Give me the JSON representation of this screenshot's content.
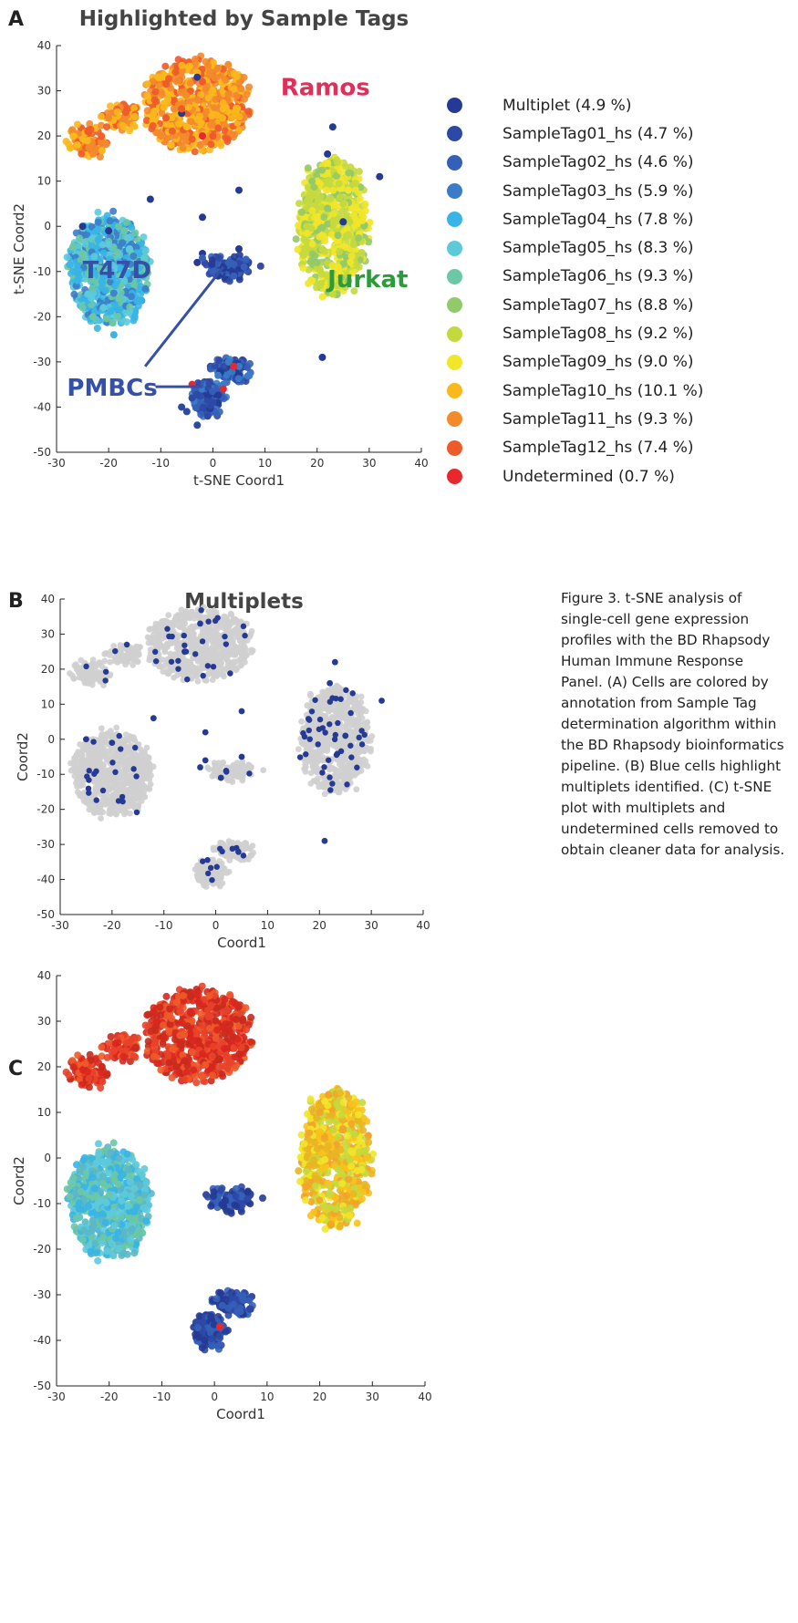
{
  "panels": {
    "a": {
      "letter": "A",
      "title": "Highlighted by Sample Tags",
      "xlabel": "t-SNE Coord1",
      "ylabel": "t-SNE Coord2"
    },
    "b": {
      "letter": "B",
      "title": "Multiplets",
      "xlabel": "Coord1",
      "ylabel": "Coord2"
    },
    "c": {
      "letter": "C",
      "title": "",
      "xlabel": "Coord1",
      "ylabel": "Coord2"
    }
  },
  "cluster_labels": [
    {
      "text": "Ramos",
      "x": 13,
      "y": 29,
      "color": "#e0305a"
    },
    {
      "text": "T47D",
      "x": -25,
      "y": -11.5,
      "color": "#3450a8"
    },
    {
      "text": "Jurkat",
      "x": 22,
      "y": -13.5,
      "color": "#2d9a3c"
    },
    {
      "text": "PMBCs",
      "x": -28,
      "y": -37.5,
      "color": "#3450a8"
    }
  ],
  "legend": [
    {
      "label": "Multiplet (4.9 %)",
      "color": "#253a94"
    },
    {
      "label": "SampleTag01_hs (4.7 %)",
      "color": "#2d49a6"
    },
    {
      "label": "SampleTag02_hs (4.6 %)",
      "color": "#3560b8"
    },
    {
      "label": "SampleTag03_hs (5.9 %)",
      "color": "#3b7cc8"
    },
    {
      "label": "SampleTag04_hs (7.8 %)",
      "color": "#38b4e6"
    },
    {
      "label": "SampleTag05_hs (8.3 %)",
      "color": "#5dcadc"
    },
    {
      "label": "SampleTag06_hs (9.3 %)",
      "color": "#6cc8a4"
    },
    {
      "label": "SampleTag07_hs (8.8 %)",
      "color": "#92c96a"
    },
    {
      "label": "SampleTag08_hs (9.2 %)",
      "color": "#c4d93e"
    },
    {
      "label": "SampleTag09_hs (9.0 %)",
      "color": "#f1e629"
    },
    {
      "label": "SampleTag10_hs (10.1 %)",
      "color": "#f9b81c"
    },
    {
      "label": "SampleTag11_hs (9.3 %)",
      "color": "#f38a2c"
    },
    {
      "label": "SampleTag12_hs (7.4 %)",
      "color": "#ee5a2a"
    },
    {
      "label": "Undetermined (0.7 %)",
      "color": "#e8282d"
    }
  ],
  "caption": "Figure 3. t-SNE analysis of single-cell gene expression profiles with the BD Rhapsody Human Immune Response Panel. (A) Cells are colored by annotation from Sample Tag determination algorithm within the BD Rhapsody bioinformatics pipeline. (B) Blue cells highlight multiplets identified. (C) t-SNE plot with multiplets and undetermined cells removed to obtain cleaner data for analysis.",
  "chart_data": [
    {
      "type": "scatter",
      "title": "Highlighted by Sample Tags",
      "xlabel": "t-SNE Coord1",
      "ylabel": "t-SNE Coord2",
      "xlim": [
        -30,
        40
      ],
      "ylim": [
        -50,
        40
      ],
      "xticks": [
        -30,
        -20,
        -10,
        0,
        10,
        20,
        30,
        40
      ],
      "yticks": [
        -50,
        -40,
        -30,
        -20,
        -10,
        0,
        10,
        20,
        30,
        40
      ],
      "series": [
        {
          "name": "Multiplet (4.9 %)",
          "points": [
            [
              -3,
              -8
            ],
            [
              -2,
              -6
            ],
            [
              2,
              -9
            ],
            [
              5,
              -5
            ],
            [
              1,
              -11
            ],
            [
              -12,
              6
            ],
            [
              5,
              8
            ],
            [
              23,
              22
            ],
            [
              21,
              -29
            ],
            [
              32,
              11
            ],
            [
              -3,
              33
            ],
            [
              -6,
              25
            ],
            [
              -2,
              2
            ],
            [
              -20,
              -1
            ],
            [
              -25,
              0
            ],
            [
              22,
              16
            ],
            [
              25,
              1
            ]
          ]
        },
        {
          "name": "SampleTag01_hs (4.7 %)",
          "points": [
            [
              -5,
              -41
            ],
            [
              -3,
              -44
            ],
            [
              0,
              -39
            ],
            [
              -4,
              -38
            ],
            [
              -1,
              -42
            ],
            [
              -6,
              -40
            ]
          ]
        },
        {
          "name": "SampleTag02_hs (4.6 %)",
          "points": [
            [
              -2,
              -7
            ],
            [
              0,
              -10
            ],
            [
              3,
              -8
            ],
            [
              4,
              -11
            ],
            [
              6,
              -9
            ]
          ]
        },
        {
          "name": "SampleTag03_hs (5.9 %)",
          "points": [
            [
              1,
              -33
            ],
            [
              3,
              -30
            ],
            [
              5,
              -31
            ],
            [
              7,
              -33
            ],
            [
              2,
              -35
            ]
          ]
        },
        {
          "name": "SampleTag04_hs (7.8 %)",
          "points": [
            [
              -22,
              -3
            ],
            [
              -18,
              -8
            ],
            [
              -26,
              -12
            ],
            [
              -15,
              -20
            ],
            [
              -19,
              -24
            ]
          ]
        },
        {
          "name": "SampleTag05_hs (8.3 %)",
          "points": [
            [
              -20,
              -4
            ],
            [
              -17,
              -12
            ],
            [
              -24,
              -15
            ],
            [
              -21,
              -18
            ],
            [
              -16,
              -5
            ]
          ]
        },
        {
          "name": "SampleTag06_hs (9.3 %)",
          "points": [
            [
              -21,
              -10
            ],
            [
              -18,
              -16
            ],
            [
              -25,
              -6
            ],
            [
              -17,
              -1
            ],
            [
              -23,
              -20
            ]
          ]
        },
        {
          "name": "SampleTag07_hs (8.8 %)",
          "points": [
            [
              24,
              -2
            ],
            [
              20,
              -8
            ],
            [
              22,
              4
            ],
            [
              26,
              -12
            ],
            [
              19,
              10
            ]
          ]
        },
        {
          "name": "SampleTag08_hs (9.2 %)",
          "points": [
            [
              21,
              -5
            ],
            [
              25,
              5
            ],
            [
              18,
              0
            ],
            [
              23,
              -15
            ],
            [
              27,
              -4
            ]
          ]
        },
        {
          "name": "SampleTag09_hs (9.0 %)",
          "points": [
            [
              22,
              14
            ],
            [
              20,
              2
            ],
            [
              24,
              -9
            ],
            [
              26,
              8
            ],
            [
              19,
              -12
            ]
          ]
        },
        {
          "name": "SampleTag10_hs (10.1 %)",
          "points": [
            [
              -5,
              22
            ],
            [
              0,
              30
            ],
            [
              -8,
              18
            ],
            [
              2,
              26
            ],
            [
              -26,
              18
            ]
          ]
        },
        {
          "name": "SampleTag11_hs (9.3 %)",
          "points": [
            [
              -3,
              28
            ],
            [
              -10,
              20
            ],
            [
              1,
              35
            ],
            [
              -20,
              24
            ],
            [
              -23,
              16
            ]
          ]
        },
        {
          "name": "SampleTag12_hs (7.4 %)",
          "points": [
            [
              -6,
              26
            ],
            [
              -2,
              32
            ],
            [
              0,
              20
            ],
            [
              -9,
              24
            ],
            [
              -24,
              21
            ]
          ]
        },
        {
          "name": "Undetermined (0.7 %)",
          "points": [
            [
              -4,
              -35
            ],
            [
              2,
              -36
            ],
            [
              4,
              -31
            ],
            [
              -2,
              20
            ]
          ]
        }
      ]
    },
    {
      "type": "scatter",
      "title": "Multiplets",
      "xlabel": "Coord1",
      "ylabel": "Coord2",
      "xlim": [
        -30,
        40
      ],
      "ylim": [
        -50,
        40
      ],
      "xticks": [
        -30,
        -20,
        -10,
        0,
        10,
        20,
        30,
        40
      ],
      "yticks": [
        -50,
        -40,
        -30,
        -20,
        -10,
        0,
        10,
        20,
        30,
        40
      ],
      "colors": {
        "cells": "#cfcfcf",
        "multiplets": "#253a94"
      }
    },
    {
      "type": "scatter",
      "title": "",
      "xlabel": "Coord1",
      "ylabel": "Coord2",
      "xlim": [
        -30,
        40
      ],
      "ylim": [
        -50,
        40
      ],
      "xticks": [
        -30,
        -20,
        -10,
        0,
        10,
        20,
        30,
        40
      ],
      "yticks": [
        -50,
        -40,
        -30,
        -20,
        -10,
        0,
        10,
        20,
        30,
        40
      ]
    }
  ]
}
